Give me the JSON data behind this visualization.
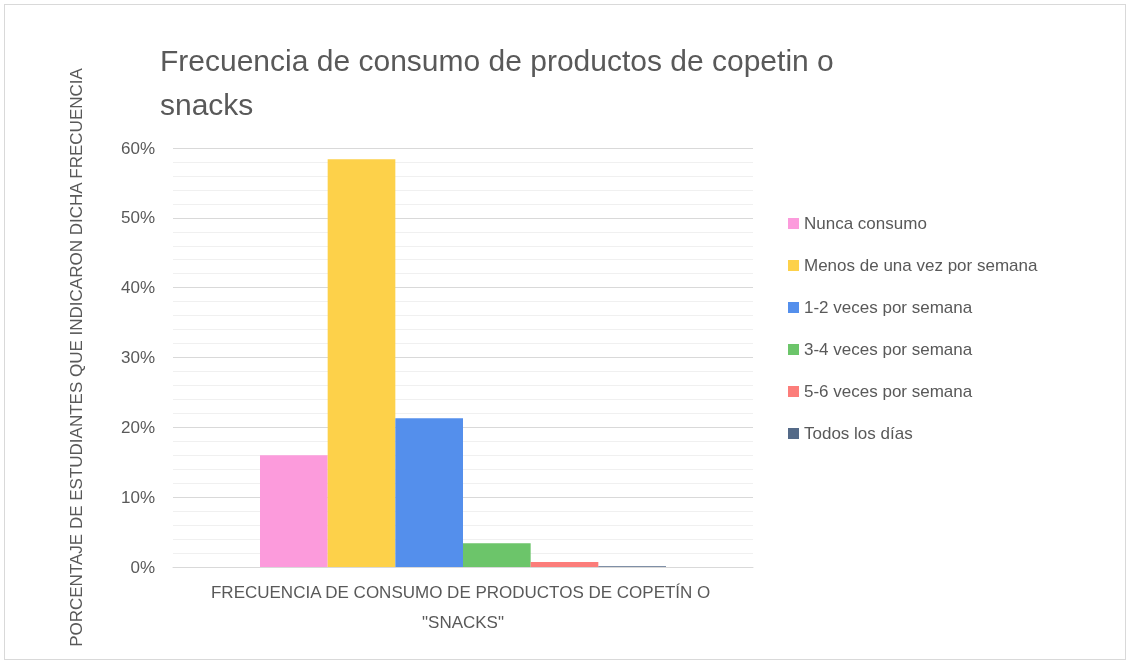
{
  "chart_data": {
    "type": "bar",
    "title": "Frecuencia de consumo de productos de copetin o snacks",
    "ylabel": "PORCENTAJE DE ESTUDIANTES QUE INDICARON DICHA FRECUENCIA",
    "categories": [
      "FRECUENCIA DE CONSUMO DE PRODUCTOS DE COPETÍN O \"SNACKS\""
    ],
    "series": [
      {
        "name": "Nunca consumo",
        "color": "#fc9bdc",
        "values": [
          16.0
        ]
      },
      {
        "name": "Menos de una vez por semana",
        "color": "#fdd14a",
        "values": [
          58.4
        ]
      },
      {
        "name": "1-2 veces por semana",
        "color": "#548fec",
        "values": [
          21.3
        ]
      },
      {
        "name": "3-4 veces por semana",
        "color": "#6cc56a",
        "values": [
          3.4
        ]
      },
      {
        "name": "5-6 veces por semana",
        "color": "#fc7d7a",
        "values": [
          0.7
        ]
      },
      {
        "name": "Todos los días",
        "color": "#546a88",
        "values": [
          0.1
        ]
      }
    ],
    "ylim": [
      0,
      60
    ],
    "yticks": [
      {
        "value": 0,
        "label": "0%"
      },
      {
        "value": 10,
        "label": "10%"
      },
      {
        "value": 20,
        "label": "20%"
      },
      {
        "value": 30,
        "label": "30%"
      },
      {
        "value": 40,
        "label": "40%"
      },
      {
        "value": 50,
        "label": "50%"
      },
      {
        "value": 60,
        "label": "60%"
      }
    ],
    "grid": true,
    "legend": "right"
  }
}
